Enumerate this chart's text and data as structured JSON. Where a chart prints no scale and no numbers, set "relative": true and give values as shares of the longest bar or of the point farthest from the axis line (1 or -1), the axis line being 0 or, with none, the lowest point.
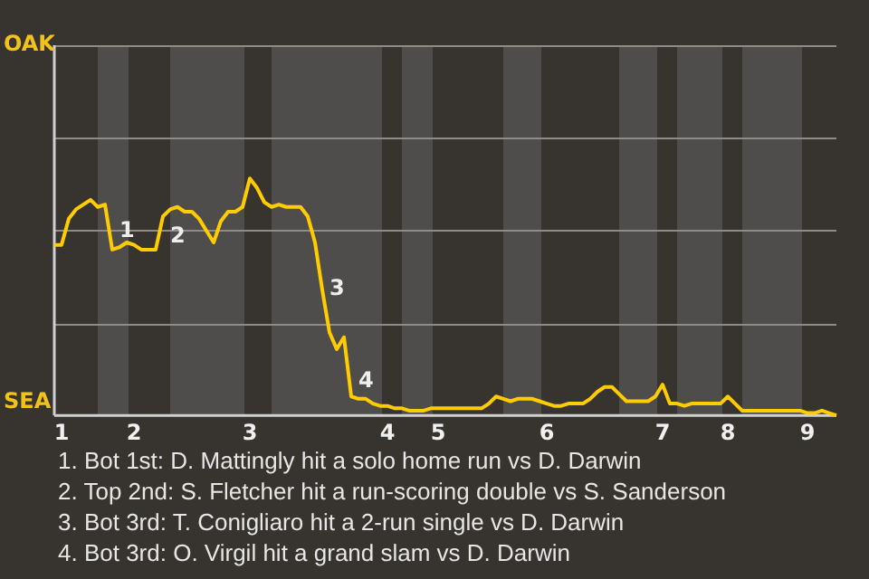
{
  "chart_data": {
    "type": "line",
    "relative": true,
    "categories": [
      null,
      "1",
      null,
      null,
      null,
      null,
      null,
      null,
      null,
      null,
      null,
      "2",
      null,
      null,
      null,
      null,
      null,
      null,
      null,
      null,
      null,
      null,
      null,
      null,
      null,
      null,
      null,
      "3",
      null,
      null,
      null,
      null,
      null,
      null,
      null,
      null,
      null,
      null,
      null,
      null,
      null,
      null,
      null,
      null,
      null,
      null,
      "4",
      null,
      null,
      null,
      null,
      null,
      null,
      "5",
      null,
      null,
      null,
      null,
      null,
      null,
      null,
      null,
      null,
      null,
      null,
      null,
      null,
      null,
      "6",
      null,
      null,
      null,
      null,
      null,
      null,
      null,
      null,
      null,
      null,
      null,
      null,
      null,
      null,
      null,
      "7",
      null,
      null,
      null,
      null,
      null,
      null,
      null,
      null,
      "8",
      null,
      null,
      null,
      null,
      null,
      null,
      null,
      null,
      null,
      null,
      "9",
      null,
      null,
      null,
      null
    ],
    "series": [
      {
        "color": "#ffcc00",
        "values": [
          0.72,
          0.72,
          0.83,
          0.87,
          0.89,
          0.91,
          0.88,
          0.89,
          0.7,
          0.71,
          0.73,
          0.72,
          0.7,
          0.7,
          0.7,
          0.84,
          0.87,
          0.88,
          0.86,
          0.86,
          0.83,
          0.78,
          0.73,
          0.82,
          0.86,
          0.86,
          0.88,
          1,
          0.96,
          0.9,
          0.88,
          0.89,
          0.88,
          0.88,
          0.88,
          0.84,
          0.73,
          0.53,
          0.35,
          0.28,
          0.33,
          0.08,
          0.07,
          0.07,
          0.05,
          0.04,
          0.04,
          0.03,
          0.03,
          0.02,
          0.02,
          0.02,
          0.03,
          0.03,
          0.03,
          0.03,
          0.03,
          0.03,
          0.03,
          0.03,
          0.05,
          0.08,
          0.07,
          0.06,
          0.07,
          0.07,
          0.07,
          0.06,
          0.05,
          0.04,
          0.04,
          0.05,
          0.05,
          0.05,
          0.07,
          0.1,
          0.12,
          0.12,
          0.09,
          0.06,
          0.06,
          0.06,
          0.06,
          0.08,
          0.13,
          0.05,
          0.05,
          0.04,
          0.05,
          0.05,
          0.05,
          0.05,
          0.05,
          0.08,
          0.05,
          0.02,
          0.02,
          0.02,
          0.02,
          0.02,
          0.02,
          0.02,
          0.02,
          0.02,
          0.01,
          0.01,
          0.02,
          0.01,
          0
        ]
      }
    ],
    "legend": false,
    "marker": "none",
    "line_style": "solid",
    "ref_lines": [
      {
        "axis": "y",
        "value": 0.78,
        "color": "#8e8b88"
      },
      {
        "axis": "y",
        "value": 0.39,
        "color": "#8e8b88"
      }
    ],
    "annotations": [
      "1",
      "2",
      "3",
      "4",
      "OAK",
      "SEA",
      "1. Bot 1st: D. Mattingly hit a solo home run vs D. Darwin",
      "2. Top 2nd: S. Fletcher hit a run-scoring double vs S. Sanderson",
      "3. Bot 3rd: T. Conigliaro hit a 2-run single vs D. Darwin",
      "4. Bot 3rd: O. Virgil hit a grand slam vs D. Darwin"
    ]
  }
}
